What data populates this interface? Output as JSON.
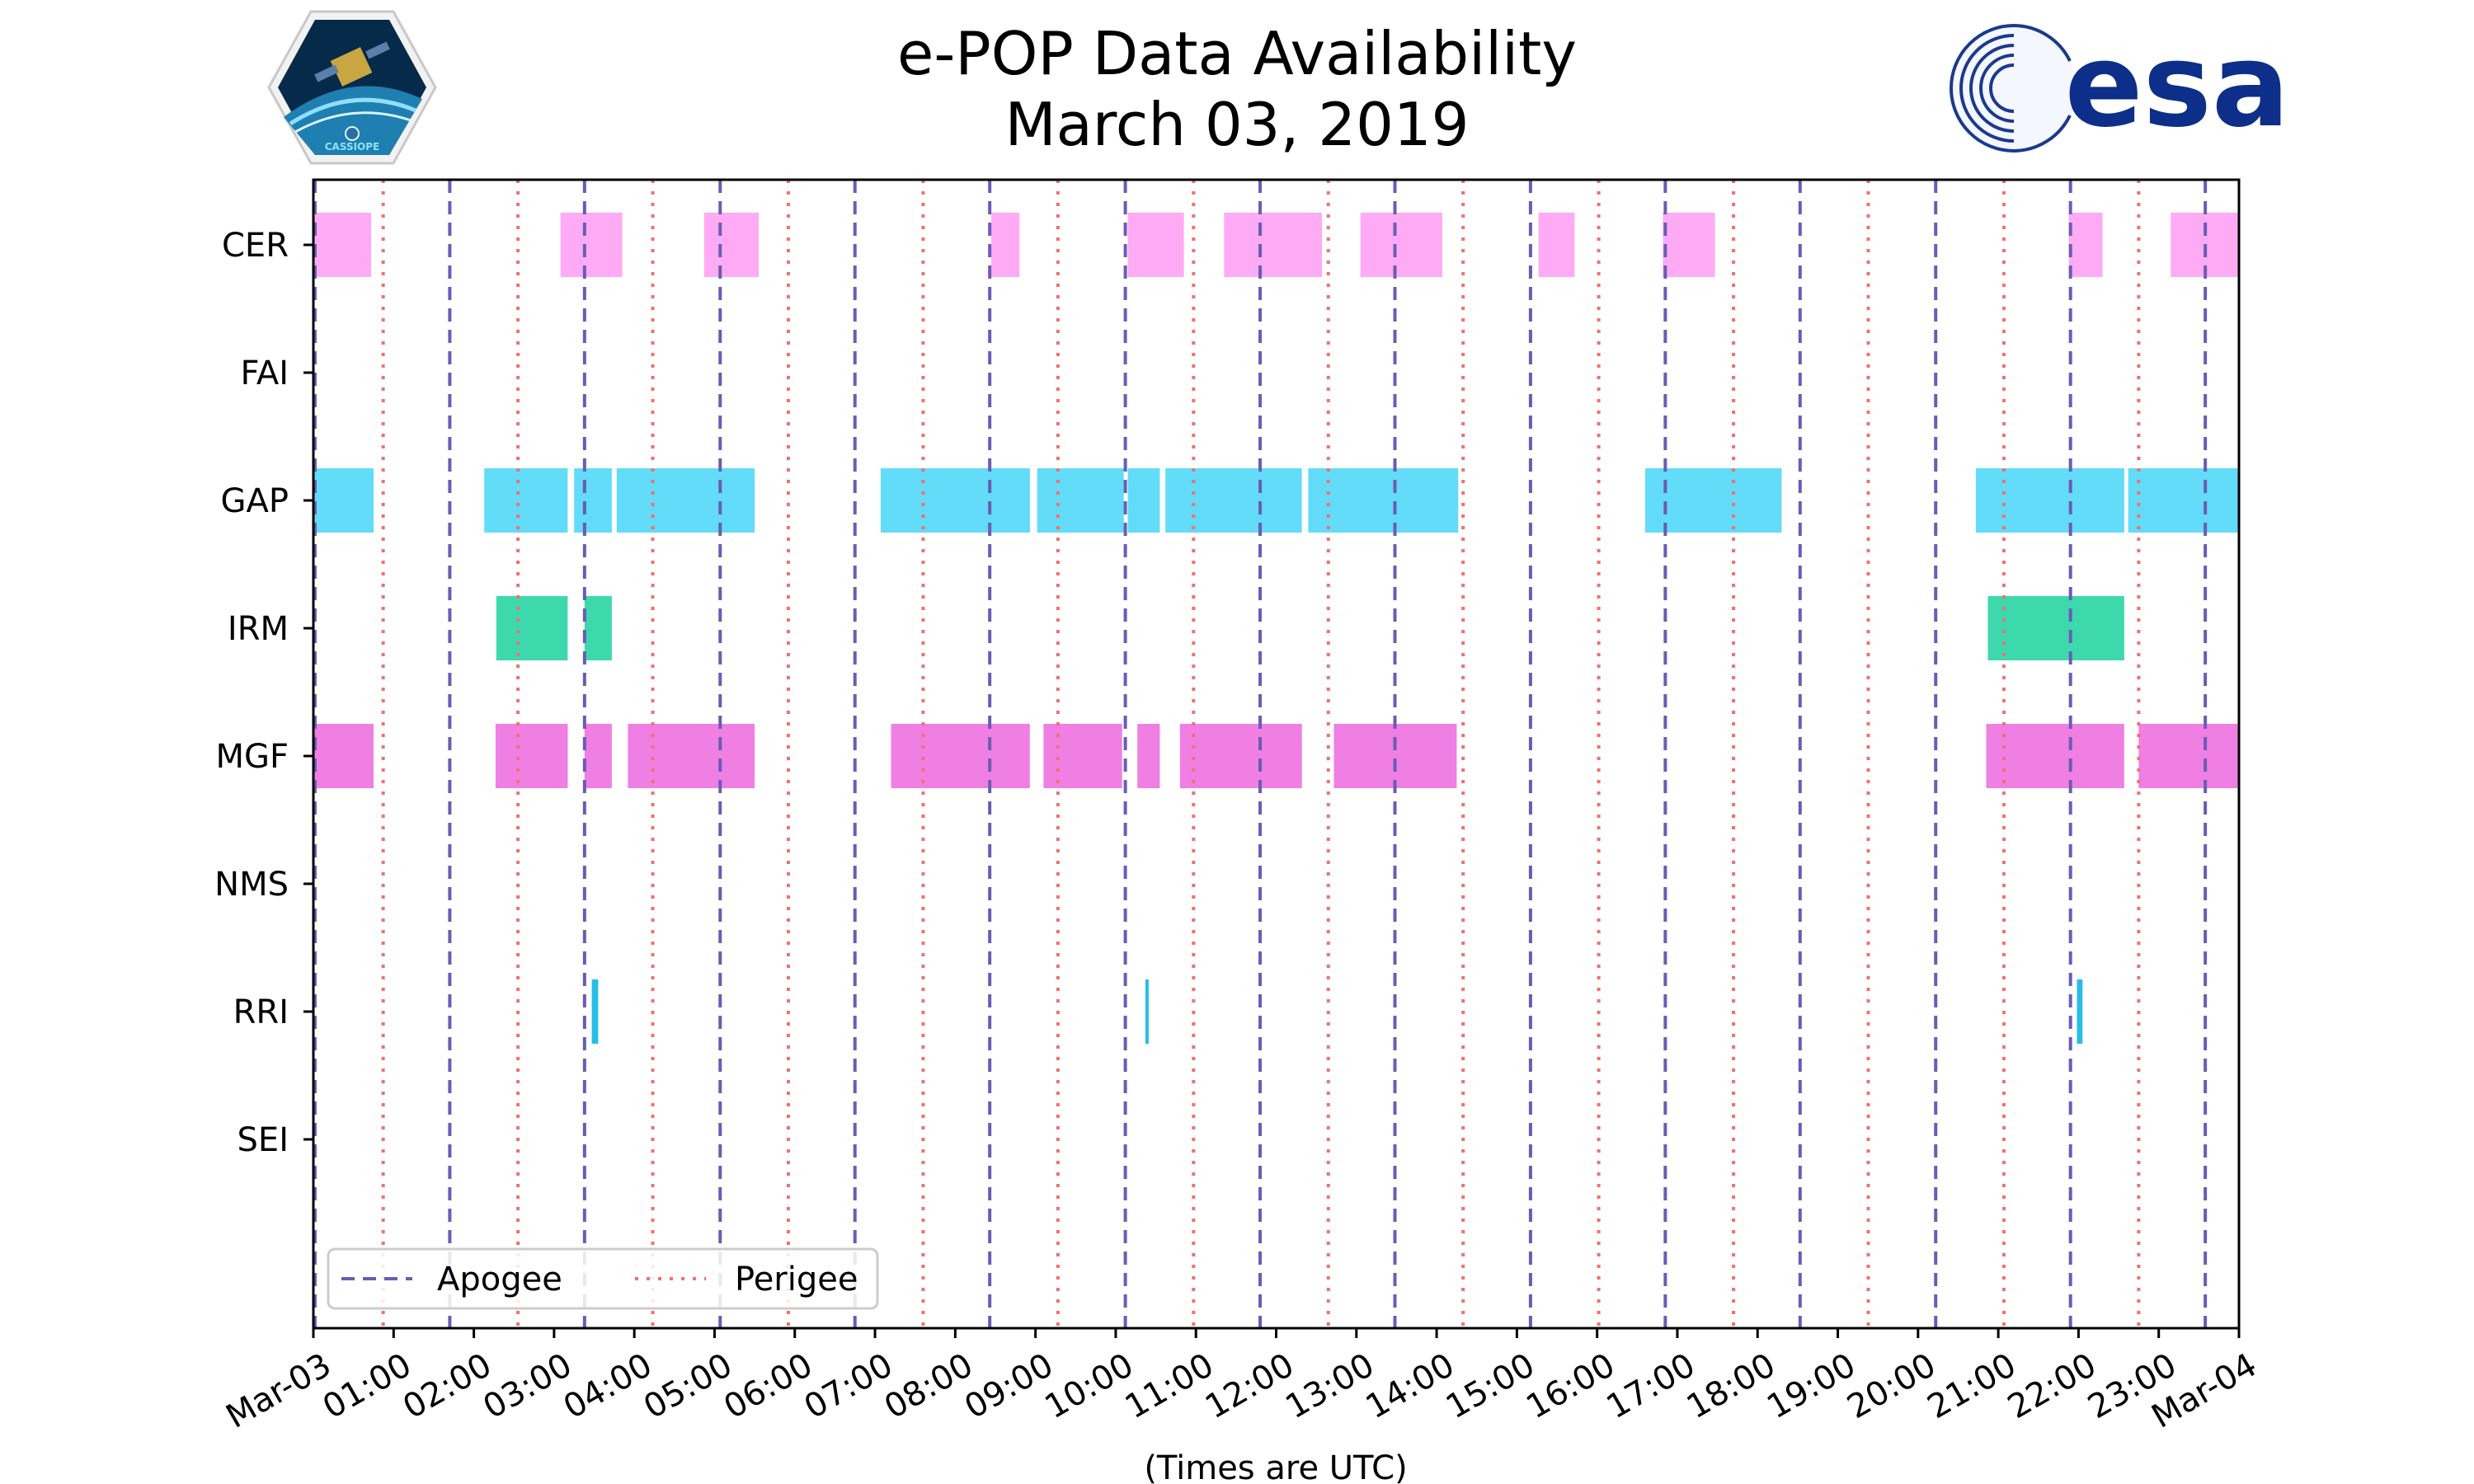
{
  "chart_data": {
    "type": "timeline",
    "title": "e-POP Data Availability",
    "subtitle": "March 03, 2019",
    "xlabel": "(Times are UTC)",
    "x_unit": "hours UTC",
    "xlim": [
      0,
      24
    ],
    "x_ticks": [
      "Mar-03",
      "01:00",
      "02:00",
      "03:00",
      "04:00",
      "05:00",
      "06:00",
      "07:00",
      "08:00",
      "09:00",
      "10:00",
      "11:00",
      "12:00",
      "13:00",
      "14:00",
      "15:00",
      "16:00",
      "17:00",
      "18:00",
      "19:00",
      "20:00",
      "21:00",
      "22:00",
      "23:00",
      "Mar-04"
    ],
    "instruments": [
      "CER",
      "FAI",
      "GAP",
      "IRM",
      "MGF",
      "NMS",
      "RRI",
      "SEI"
    ],
    "apogee_hours": [
      0.02,
      1.7,
      3.38,
      5.07,
      6.75,
      8.43,
      10.12,
      11.8,
      13.48,
      15.17,
      16.85,
      18.53,
      20.22,
      21.9,
      23.58
    ],
    "perigee_hours": [
      0.87,
      2.55,
      4.23,
      5.92,
      7.6,
      9.28,
      10.97,
      12.65,
      14.33,
      16.02,
      17.7,
      19.38,
      21.07,
      22.75
    ],
    "series": [
      {
        "name": "CER",
        "color": "#ffaaf4",
        "segments": [
          [
            0.0,
            0.72
          ],
          [
            3.08,
            3.85
          ],
          [
            4.87,
            5.55
          ],
          [
            8.45,
            8.8
          ],
          [
            10.15,
            10.85
          ],
          [
            11.35,
            12.57
          ],
          [
            13.05,
            14.07
          ],
          [
            15.27,
            15.72
          ],
          [
            16.82,
            17.47
          ],
          [
            21.88,
            22.3
          ],
          [
            23.15,
            24.0
          ]
        ]
      },
      {
        "name": "FAI",
        "color": "#ffd84a",
        "segments": []
      },
      {
        "name": "GAP",
        "color": "#62dcf8",
        "segments": [
          [
            0.0,
            0.75
          ],
          [
            2.13,
            3.17
          ],
          [
            3.25,
            3.72
          ],
          [
            3.78,
            5.5
          ],
          [
            7.07,
            8.93
          ],
          [
            9.02,
            10.1
          ],
          [
            10.15,
            10.55
          ],
          [
            10.62,
            12.32
          ],
          [
            12.4,
            14.27
          ],
          [
            16.6,
            18.3
          ],
          [
            20.72,
            22.57
          ],
          [
            22.62,
            24.0
          ]
        ]
      },
      {
        "name": "IRM",
        "color": "#3dd9ad",
        "segments": [
          [
            2.28,
            3.17
          ],
          [
            3.38,
            3.72
          ],
          [
            20.87,
            22.57
          ]
        ]
      },
      {
        "name": "MGF",
        "color": "#f07fe4",
        "segments": [
          [
            0.0,
            0.75
          ],
          [
            2.27,
            3.17
          ],
          [
            3.38,
            3.72
          ],
          [
            3.92,
            5.5
          ],
          [
            7.2,
            8.93
          ],
          [
            9.1,
            10.08
          ],
          [
            10.27,
            10.55
          ],
          [
            10.8,
            12.32
          ],
          [
            12.72,
            14.25
          ],
          [
            20.85,
            22.57
          ],
          [
            22.75,
            24.0
          ]
        ]
      },
      {
        "name": "NMS",
        "color": "#a0a0ff",
        "segments": []
      },
      {
        "name": "RRI",
        "color": "#29bde6",
        "segments": [
          [
            3.47,
            3.55
          ],
          [
            10.37,
            10.4
          ],
          [
            21.98,
            22.05
          ]
        ]
      },
      {
        "name": "SEI",
        "color": "#ff9966",
        "segments": []
      }
    ],
    "legend": {
      "position": "lower-left",
      "entries": [
        "Apogee",
        "Perigee"
      ]
    },
    "apogee_color": "#6a5cb5",
    "perigee_color": "#f07070",
    "grid": false
  },
  "logos": {
    "mission_text": "CASSIOPE",
    "esa_text": "esa"
  }
}
